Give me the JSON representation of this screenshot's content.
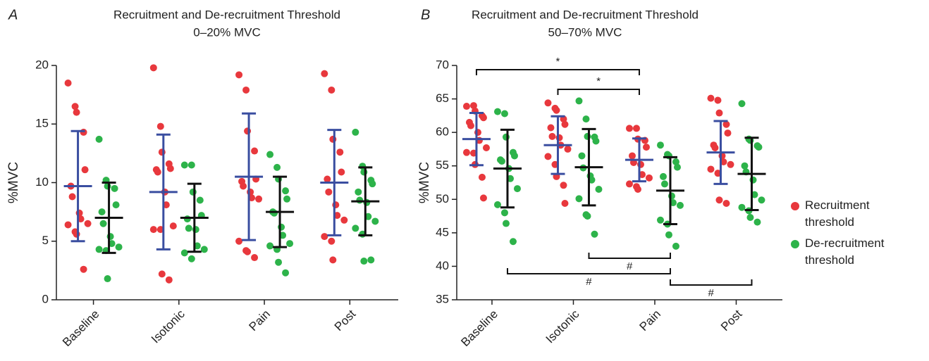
{
  "chart_data": [
    {
      "type": "dot",
      "panel": "A",
      "title": "Recruitment and De-recruitment Threshold",
      "subtitle": "0–20% MVC",
      "y_label": "%MVC",
      "categories": [
        "Baseline",
        "Isotonic",
        "Pain",
        "Post"
      ],
      "ylim": [
        0,
        20
      ],
      "yticks": [
        0,
        5,
        10,
        15,
        20
      ],
      "series": [
        {
          "color": "#e8383d",
          "summary_color": "#3a4ea0",
          "values": [
            [
              18.5,
              16.5,
              16.0,
              14.3,
              11.1,
              9.7,
              8.8,
              7.4,
              6.9,
              6.5,
              6.4,
              5.8,
              5.6,
              2.6
            ],
            [
              19.8,
              14.8,
              12.6,
              11.6,
              11.2,
              11.1,
              10.9,
              9.2,
              8.1,
              6.3,
              6.0,
              6.0,
              2.2,
              1.7
            ],
            [
              19.2,
              17.9,
              14.4,
              12.7,
              10.3,
              10.1,
              9.7,
              9.2,
              8.7,
              8.6,
              5.0,
              4.2,
              4.1,
              3.6
            ],
            [
              19.3,
              17.9,
              13.7,
              12.6,
              10.9,
              10.3,
              9.2,
              8.1,
              7.2,
              6.8,
              5.4,
              5.0,
              3.4
            ]
          ],
          "means": [
            9.7,
            9.2,
            10.5,
            10.0
          ],
          "sd": [
            4.7,
            4.9,
            5.4,
            4.5
          ]
        },
        {
          "color": "#2db34a",
          "summary_color": "#111111",
          "values": [
            [
              13.7,
              10.2,
              9.7,
              9.5,
              8.1,
              7.5,
              6.5,
              5.4,
              4.8,
              4.5,
              4.3,
              4.2,
              1.8
            ],
            [
              11.5,
              11.5,
              9.2,
              8.5,
              7.2,
              6.9,
              6.1,
              6.0,
              4.6,
              4.3,
              4.0,
              3.5
            ],
            [
              12.4,
              11.3,
              10.3,
              9.3,
              8.6,
              7.5,
              7.4,
              6.2,
              5.5,
              4.8,
              4.6,
              4.3,
              3.2,
              2.3
            ],
            [
              14.3,
              11.4,
              10.9,
              10.2,
              9.9,
              9.2,
              8.5,
              8.3,
              7.1,
              6.7,
              6.1,
              5.6,
              3.3,
              3.4
            ]
          ],
          "means": [
            7.0,
            7.0,
            7.5,
            8.4
          ],
          "sd": [
            3.0,
            2.9,
            3.0,
            2.9
          ]
        }
      ]
    },
    {
      "type": "dot",
      "panel": "B",
      "title": "Recruitment and De-recruitment Threshold",
      "subtitle": "50–70% MVC",
      "y_label": "%MVC",
      "categories": [
        "Baseline",
        "Isotonic",
        "Pain",
        "Post"
      ],
      "ylim": [
        35,
        70
      ],
      "yticks": [
        35,
        40,
        45,
        50,
        55,
        60,
        65,
        70
      ],
      "legend": "right",
      "series": [
        {
          "name": "Recruitment threshold",
          "color": "#e8383d",
          "summary_color": "#3a4ea0",
          "values": [
            [
              63.9,
              64.0,
              63.2,
              62.5,
              62.2,
              61.5,
              61.0,
              60.0,
              58.8,
              57.7,
              57.0,
              56.9,
              55.2,
              53.3,
              50.2
            ],
            [
              64.4,
              63.6,
              63.3,
              62.0,
              61.2,
              60.7,
              59.4,
              59.2,
              58.1,
              57.5,
              56.4,
              55.2,
              53.4,
              52.1,
              49.4
            ],
            [
              60.6,
              60.6,
              59.0,
              58.8,
              57.8,
              56.5,
              55.5,
              55.2,
              53.7,
              53.2,
              52.3,
              51.9,
              51.5
            ],
            [
              65.1,
              64.8,
              62.9,
              61.2,
              59.9,
              58.1,
              57.7,
              56.5,
              55.6,
              55.2,
              54.5,
              53.9,
              49.9,
              49.4
            ]
          ],
          "means": [
            59.0,
            58.1,
            55.9,
            57.0
          ],
          "sd": [
            3.9,
            4.3,
            3.2,
            4.7
          ]
        },
        {
          "name": "De-recruitment threshold",
          "color": "#2db34a",
          "summary_color": "#111111",
          "values": [
            [
              63.1,
              62.8,
              59.3,
              57.0,
              56.5,
              55.9,
              55.7,
              54.6,
              53.1,
              51.6,
              49.2,
              48.0,
              46.4,
              43.7
            ],
            [
              64.7,
              62.0,
              59.4,
              59.3,
              58.7,
              56.5,
              54.7,
              53.5,
              52.9,
              51.5,
              50.1,
              47.7,
              47.5,
              44.8
            ],
            [
              58.1,
              56.7,
              56.5,
              55.6,
              54.8,
              53.4,
              52.3,
              50.5,
              49.5,
              49.1,
              46.9,
              46.3,
              44.7,
              43.0
            ],
            [
              64.3,
              59.0,
              58.8,
              58.0,
              57.8,
              55.0,
              54.1,
              52.9,
              50.7,
              49.9,
              48.8,
              48.3,
              47.3,
              46.6
            ]
          ],
          "means": [
            54.6,
            54.8,
            51.3,
            53.8
          ],
          "sd": [
            5.8,
            5.7,
            5.0,
            5.4
          ]
        }
      ],
      "annotations": [
        {
          "text": "*",
          "from": [
            0,
            0
          ],
          "to": [
            2,
            0
          ]
        },
        {
          "text": "*",
          "from": [
            1,
            0
          ],
          "to": [
            2,
            0
          ]
        },
        {
          "text": "#",
          "from": [
            1,
            1
          ],
          "to": [
            2,
            1
          ]
        },
        {
          "text": "#",
          "from": [
            0,
            1
          ],
          "to": [
            2,
            1
          ]
        },
        {
          "text": "#",
          "from": [
            2,
            1
          ],
          "to": [
            3,
            1
          ]
        }
      ]
    }
  ]
}
